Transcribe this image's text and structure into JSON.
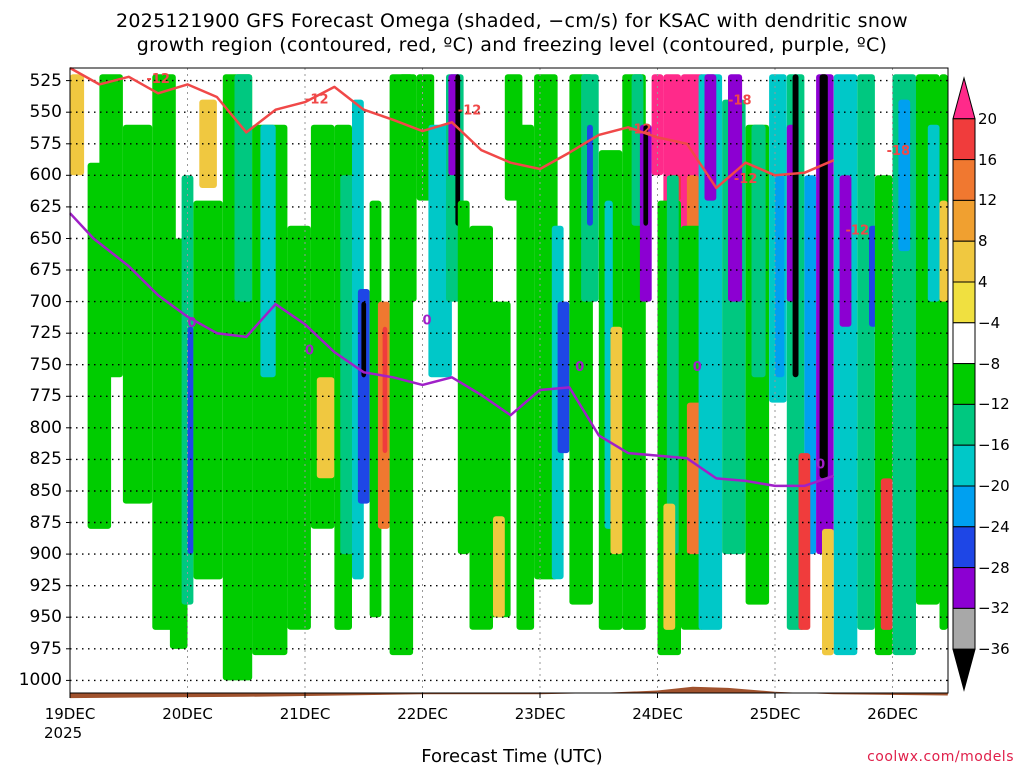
{
  "title": {
    "line1": "2025121900 GFS Forecast Omega (shaded, −cm/s) for KSAC with dendritic snow",
    "line2": "growth region (contoured, red, ºC) and freezing level (contoured, purple, ºC)"
  },
  "xlabel": "Forecast Time (UTC)",
  "footer": "coolwx.com/models",
  "year_label": "2025",
  "chart_data": {
    "type": "heatmap",
    "x_ticks": [
      "19DEC",
      "20DEC",
      "21DEC",
      "22DEC",
      "23DEC",
      "24DEC",
      "25DEC",
      "26DEC"
    ],
    "y_ticks": [
      525,
      550,
      575,
      600,
      625,
      650,
      675,
      700,
      725,
      750,
      775,
      800,
      825,
      850,
      875,
      900,
      925,
      950,
      975,
      1000
    ],
    "y_unit": "hPa",
    "ylim": [
      1010,
      515
    ],
    "colorbar": {
      "labels": [
        "20",
        "16",
        "12",
        "8",
        "4",
        "−4",
        "−8",
        "−12",
        "−16",
        "−20",
        "−24",
        "−28",
        "−32",
        "−36"
      ],
      "colors": [
        "#ff2a8a",
        "#f03c3c",
        "#f07830",
        "#f0a030",
        "#f0c840",
        "#f0e040",
        "#ffffff",
        "#00cc00",
        "#00c880",
        "#00c8c8",
        "#00a0f0",
        "#1e46e6",
        "#8c00d2",
        "#a8a8a8",
        "#000000"
      ]
    },
    "contour_labels": {
      "dgz": [
        "-12",
        "-12",
        "-12",
        "-12",
        "-18",
        "-12",
        "-12",
        "-18"
      ],
      "freezing": [
        "0",
        "0",
        "0",
        "0",
        "0",
        "0",
        "0"
      ]
    },
    "freezing_level_hpa": [
      [
        0,
        630
      ],
      [
        0.2,
        650
      ],
      [
        0.5,
        672
      ],
      [
        0.75,
        695
      ],
      [
        1.0,
        712
      ],
      [
        1.25,
        725
      ],
      [
        1.5,
        728
      ],
      [
        1.75,
        702
      ],
      [
        2.0,
        718
      ],
      [
        2.25,
        740
      ],
      [
        2.5,
        756
      ],
      [
        2.75,
        760
      ],
      [
        3.0,
        766
      ],
      [
        3.25,
        760
      ],
      [
        3.5,
        774
      ],
      [
        3.75,
        790
      ],
      [
        4.0,
        770
      ],
      [
        4.25,
        768
      ],
      [
        4.5,
        806
      ],
      [
        4.75,
        820
      ],
      [
        5.0,
        822
      ],
      [
        5.25,
        824
      ],
      [
        5.5,
        840
      ],
      [
        5.75,
        842
      ],
      [
        6.0,
        846
      ],
      [
        6.25,
        846
      ],
      [
        6.5,
        838
      ]
    ],
    "dgz_minus12_hpa": [
      [
        0,
        515
      ],
      [
        0.25,
        528
      ],
      [
        0.5,
        522
      ],
      [
        0.75,
        535
      ],
      [
        1.0,
        528
      ],
      [
        1.25,
        538
      ],
      [
        1.5,
        566
      ],
      [
        1.75,
        548
      ],
      [
        2.0,
        542
      ],
      [
        2.25,
        530
      ],
      [
        2.5,
        548
      ],
      [
        2.75,
        556
      ],
      [
        3.0,
        565
      ],
      [
        3.25,
        558
      ],
      [
        3.5,
        580
      ],
      [
        3.75,
        590
      ],
      [
        4.0,
        595
      ],
      [
        4.25,
        582
      ],
      [
        4.5,
        568
      ],
      [
        4.75,
        562
      ],
      [
        5.0,
        570
      ],
      [
        5.25,
        575
      ],
      [
        5.5,
        610
      ],
      [
        5.75,
        590
      ],
      [
        6.0,
        600
      ],
      [
        6.25,
        598
      ],
      [
        6.5,
        588
      ]
    ],
    "terrain_top_hpa_approx": 1010
  }
}
